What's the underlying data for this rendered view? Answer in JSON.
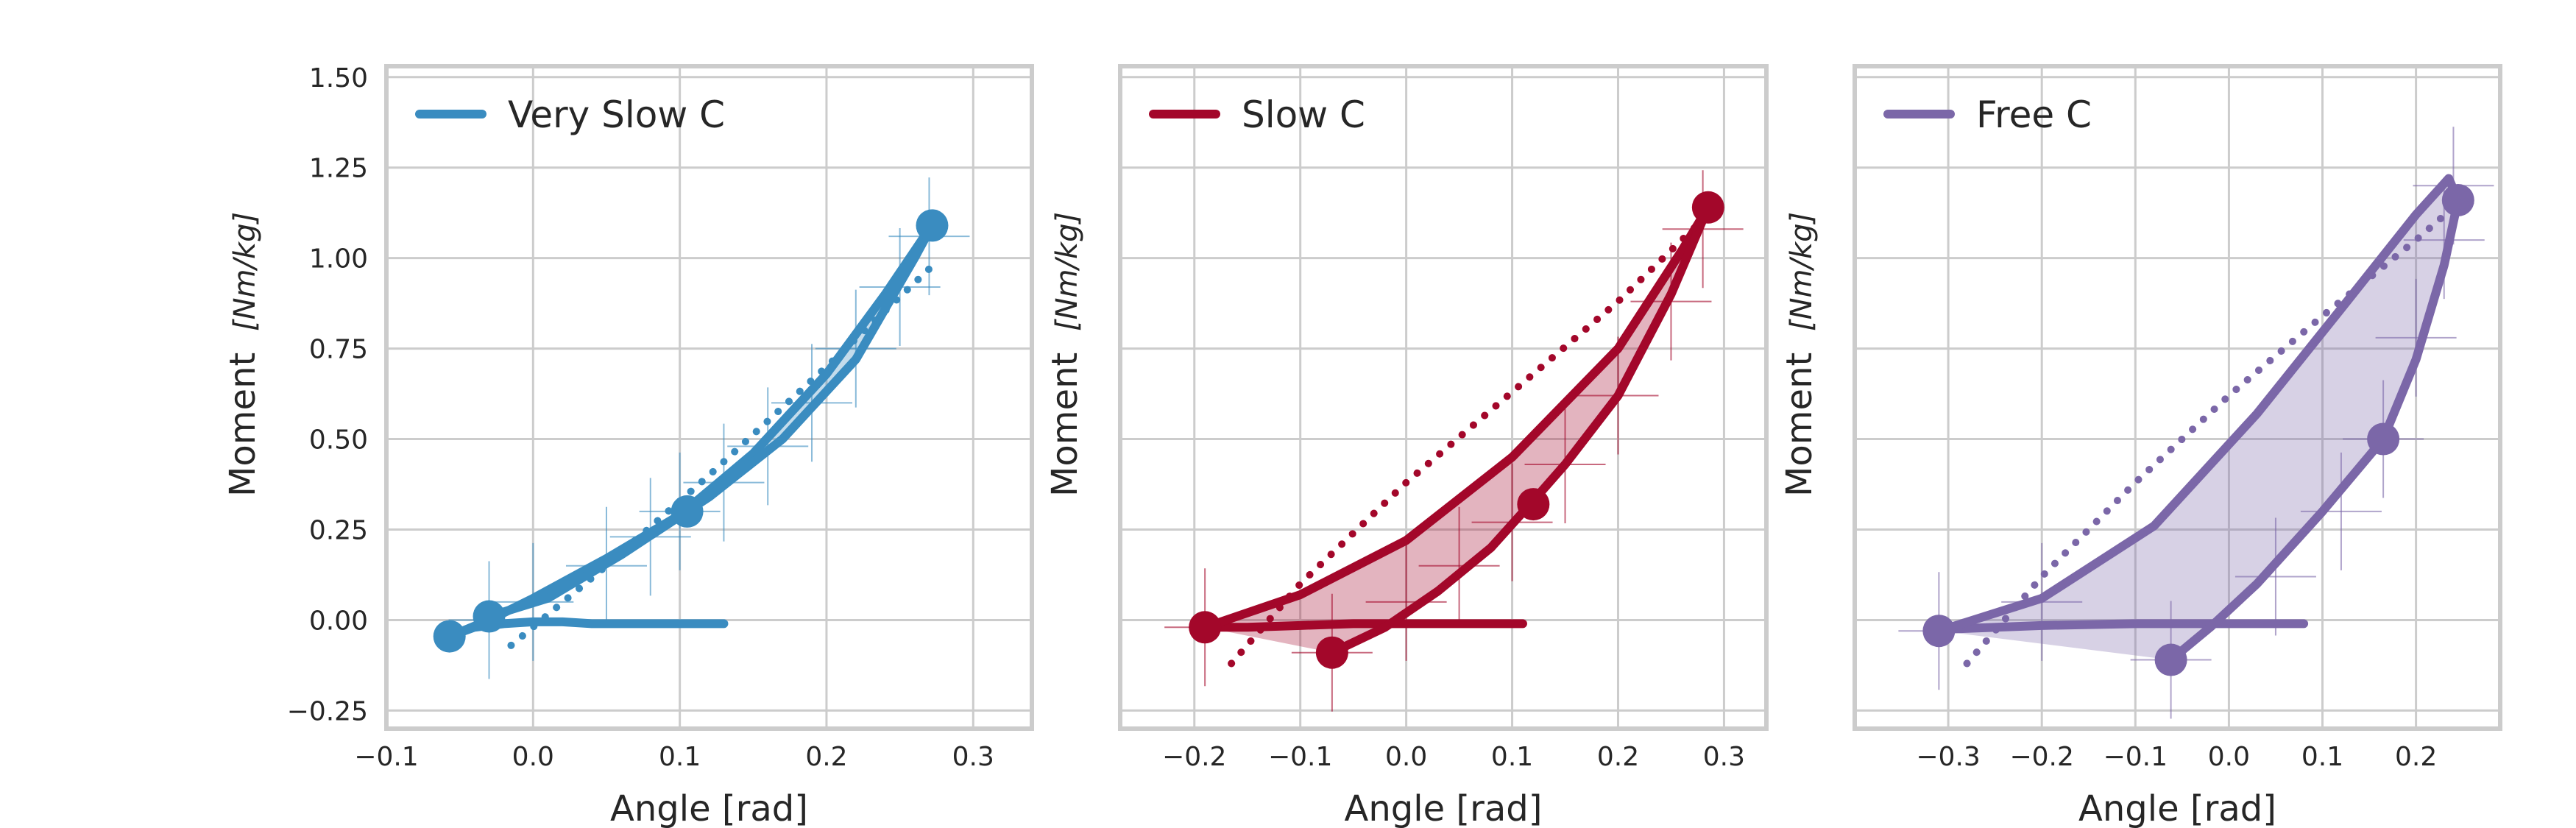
{
  "chart_data": [
    {
      "type": "line",
      "legend": "Very Slow C",
      "legend_position": "top-left",
      "color": "#3a8cc0",
      "xlabel": "Angle [rad]",
      "ylabel": "Moment",
      "ylabel_unit": "[Nm/kg]",
      "xlim": [
        -0.1,
        0.34
      ],
      "ylim": [
        -0.3,
        1.53
      ],
      "xticks": [
        "−0.1",
        "0.0",
        "0.1",
        "0.2",
        "0.3"
      ],
      "yticks": [
        "−0.25",
        "0.00",
        "0.25",
        "0.50",
        "0.75",
        "1.00",
        "1.25",
        "1.50"
      ],
      "grid": true,
      "series": [
        {
          "style": "solid",
          "x": [
            0.13,
            0.1,
            0.07,
            0.04,
            0.02,
            0.0,
            -0.02,
            -0.04,
            -0.057
          ],
          "y": [
            -0.01,
            -0.01,
            -0.01,
            -0.01,
            -0.005,
            -0.005,
            -0.01,
            -0.02,
            -0.045
          ]
        },
        {
          "style": "solid",
          "x": [
            -0.057,
            -0.03,
            0.0,
            0.05,
            0.1,
            0.15,
            0.2,
            0.24,
            0.265,
            0.272
          ],
          "y": [
            -0.045,
            0.0,
            0.06,
            0.17,
            0.29,
            0.46,
            0.68,
            0.9,
            1.05,
            1.09
          ]
        },
        {
          "style": "solid",
          "x": [
            0.272,
            0.26,
            0.22,
            0.17,
            0.12,
            0.06,
            0.01,
            -0.03
          ],
          "y": [
            1.09,
            1.0,
            0.72,
            0.5,
            0.34,
            0.18,
            0.06,
            0.01
          ]
        },
        {
          "style": "dotted",
          "x": [
            -0.015,
            0.05,
            0.12,
            0.2,
            0.27
          ],
          "y": [
            -0.07,
            0.15,
            0.4,
            0.7,
            0.97
          ]
        }
      ],
      "markers": [
        {
          "x": -0.057,
          "y": -0.045
        },
        {
          "x": -0.03,
          "y": 0.01
        },
        {
          "x": 0.105,
          "y": 0.3
        },
        {
          "x": 0.272,
          "y": 1.09
        }
      ],
      "error_points": [
        {
          "x": 0.05,
          "y": 0.15
        },
        {
          "x": 0.08,
          "y": 0.23
        },
        {
          "x": 0.1,
          "y": 0.3
        },
        {
          "x": 0.13,
          "y": 0.38
        },
        {
          "x": 0.16,
          "y": 0.48
        },
        {
          "x": 0.19,
          "y": 0.6
        },
        {
          "x": 0.22,
          "y": 0.75
        },
        {
          "x": 0.25,
          "y": 0.92
        },
        {
          "x": 0.27,
          "y": 1.06
        },
        {
          "x": 0.0,
          "y": 0.05
        },
        {
          "x": -0.03,
          "y": 0.0
        }
      ],
      "fill_between": true
    },
    {
      "type": "line",
      "legend": "Slow C",
      "legend_position": "top-left",
      "color": "#a3072a",
      "xlabel": "Angle [rad]",
      "ylabel": "Moment",
      "ylabel_unit": "[Nm/kg]",
      "xlim": [
        -0.27,
        0.34
      ],
      "ylim": [
        -0.3,
        1.53
      ],
      "xticks": [
        "−0.2",
        "−0.1",
        "0.0",
        "0.1",
        "0.2",
        "0.3"
      ],
      "yticks": [],
      "grid": true,
      "series": [
        {
          "style": "solid",
          "x": [
            0.11,
            0.05,
            0.0,
            -0.05,
            -0.1,
            -0.15,
            -0.19
          ],
          "y": [
            -0.01,
            -0.01,
            -0.01,
            -0.01,
            -0.015,
            -0.02,
            -0.02
          ]
        },
        {
          "style": "solid",
          "x": [
            -0.19,
            -0.1,
            0.0,
            0.1,
            0.2,
            0.26,
            0.285
          ],
          "y": [
            -0.02,
            0.07,
            0.22,
            0.45,
            0.75,
            1.02,
            1.14
          ]
        },
        {
          "style": "solid",
          "x": [
            0.285,
            0.25,
            0.2,
            0.15,
            0.12,
            0.08,
            0.03,
            -0.02,
            -0.07
          ],
          "y": [
            1.14,
            0.9,
            0.62,
            0.43,
            0.33,
            0.2,
            0.08,
            -0.02,
            -0.09
          ]
        },
        {
          "style": "dotted",
          "x": [
            -0.165,
            -0.1,
            0.0,
            0.1,
            0.2,
            0.285
          ],
          "y": [
            -0.12,
            0.1,
            0.38,
            0.63,
            0.88,
            1.12
          ]
        }
      ],
      "markers": [
        {
          "x": -0.19,
          "y": -0.02
        },
        {
          "x": -0.07,
          "y": -0.09
        },
        {
          "x": 0.12,
          "y": 0.32
        },
        {
          "x": 0.285,
          "y": 1.14
        }
      ],
      "error_points": [
        {
          "x": -0.19,
          "y": -0.02
        },
        {
          "x": -0.07,
          "y": -0.09
        },
        {
          "x": 0.0,
          "y": 0.05
        },
        {
          "x": 0.05,
          "y": 0.15
        },
        {
          "x": 0.1,
          "y": 0.27
        },
        {
          "x": 0.15,
          "y": 0.43
        },
        {
          "x": 0.2,
          "y": 0.62
        },
        {
          "x": 0.25,
          "y": 0.88
        },
        {
          "x": 0.28,
          "y": 1.08
        }
      ],
      "fill_between": true
    },
    {
      "type": "line",
      "legend": "Free C",
      "legend_position": "top-left",
      "color": "#7b67a8",
      "xlabel": "Angle [rad]",
      "ylabel": "Moment",
      "ylabel_unit": "[Nm/kg]",
      "xlim": [
        -0.4,
        0.29
      ],
      "ylim": [
        -0.3,
        1.53
      ],
      "xticks": [
        "−0.3",
        "−0.2",
        "−0.1",
        "0.0",
        "0.1",
        "0.2"
      ],
      "yticks": [],
      "grid": true,
      "series": [
        {
          "style": "solid",
          "x": [
            0.08,
            0.0,
            -0.1,
            -0.2,
            -0.3,
            -0.31
          ],
          "y": [
            -0.01,
            -0.01,
            -0.01,
            -0.015,
            -0.025,
            -0.03
          ]
        },
        {
          "style": "solid",
          "x": [
            -0.31,
            -0.2,
            -0.08,
            0.03,
            0.12,
            0.2,
            0.235,
            0.245
          ],
          "y": [
            -0.03,
            0.06,
            0.26,
            0.57,
            0.86,
            1.12,
            1.22,
            1.16
          ]
        },
        {
          "style": "solid",
          "x": [
            0.245,
            0.23,
            0.2,
            0.165,
            0.1,
            0.03,
            -0.02,
            -0.062
          ],
          "y": [
            1.16,
            0.98,
            0.72,
            0.5,
            0.3,
            0.1,
            -0.02,
            -0.11
          ]
        },
        {
          "style": "dotted",
          "x": [
            -0.28,
            -0.2,
            -0.1,
            0.0,
            0.1,
            0.2,
            0.24
          ],
          "y": [
            -0.12,
            0.12,
            0.38,
            0.62,
            0.84,
            1.05,
            1.14
          ]
        }
      ],
      "markers": [
        {
          "x": -0.31,
          "y": -0.03
        },
        {
          "x": -0.062,
          "y": -0.11
        },
        {
          "x": 0.165,
          "y": 0.5
        },
        {
          "x": 0.245,
          "y": 1.16
        }
      ],
      "error_points": [
        {
          "x": -0.31,
          "y": -0.03
        },
        {
          "x": -0.2,
          "y": 0.05
        },
        {
          "x": -0.062,
          "y": -0.11
        },
        {
          "x": 0.05,
          "y": 0.12
        },
        {
          "x": 0.12,
          "y": 0.3
        },
        {
          "x": 0.165,
          "y": 0.5
        },
        {
          "x": 0.2,
          "y": 0.78
        },
        {
          "x": 0.23,
          "y": 1.05
        },
        {
          "x": 0.24,
          "y": 1.2
        }
      ],
      "fill_between": true
    }
  ]
}
